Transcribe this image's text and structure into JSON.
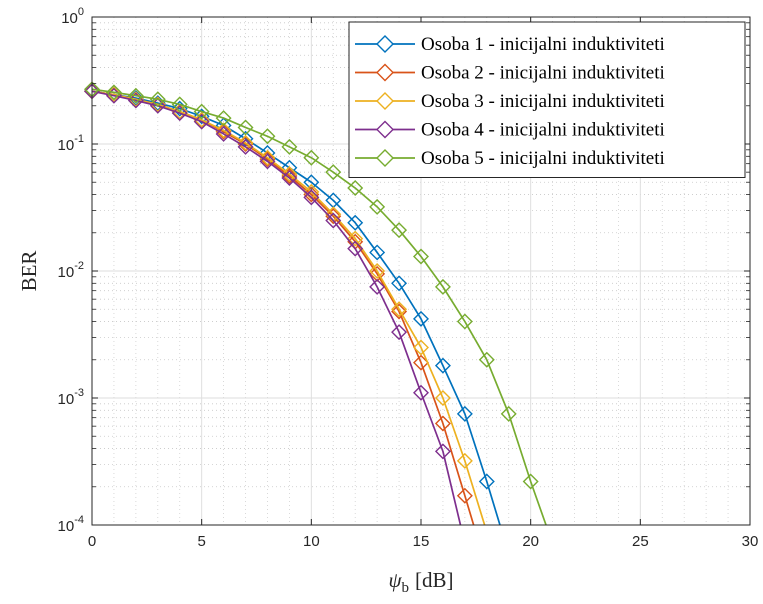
{
  "chart_data": {
    "type": "line",
    "title": "",
    "xlabel_symbol": "ψ",
    "xlabel_subscript": "b",
    "xlabel_unit": "[dB]",
    "ylabel": "BER",
    "xlim": [
      0,
      30
    ],
    "ylim": [
      0.0001,
      1
    ],
    "yscale": "log",
    "grid": true,
    "minor_grid": true,
    "legend_position": "top-right",
    "marker": "diamond",
    "x_ticks": [
      "0",
      "5",
      "10",
      "15",
      "20",
      "25",
      "30"
    ],
    "y_ticks": [
      {
        "base": "10",
        "exp": "0"
      },
      {
        "base": "10",
        "exp": "-1"
      },
      {
        "base": "10",
        "exp": "-2"
      },
      {
        "base": "10",
        "exp": "-3"
      },
      {
        "base": "10",
        "exp": "-4"
      }
    ],
    "series": [
      {
        "name": "Osoba 1 - inicijalni induktiviteti",
        "color": "#0072BD",
        "x": [
          0,
          1,
          2,
          3,
          4,
          5,
          6,
          7,
          8,
          9,
          10,
          11,
          12,
          13,
          14,
          15,
          16,
          17,
          18,
          18.6
        ],
        "y": [
          0.26,
          0.245,
          0.23,
          0.21,
          0.19,
          0.165,
          0.14,
          0.11,
          0.085,
          0.065,
          0.05,
          0.036,
          0.024,
          0.014,
          0.008,
          0.0042,
          0.0018,
          0.00075,
          0.00022,
          0.0001
        ]
      },
      {
        "name": "Osoba 2 - inicijalni induktiviteti",
        "color": "#D95319",
        "x": [
          0,
          1,
          2,
          3,
          4,
          5,
          6,
          7,
          8,
          9,
          10,
          11,
          12,
          13,
          14,
          15,
          16,
          17,
          17.4
        ],
        "y": [
          0.26,
          0.245,
          0.225,
          0.205,
          0.18,
          0.155,
          0.125,
          0.1,
          0.076,
          0.056,
          0.04,
          0.027,
          0.017,
          0.0095,
          0.0048,
          0.0019,
          0.00063,
          0.00017,
          0.0001
        ]
      },
      {
        "name": "Osoba 3 - inicijalni induktiviteti",
        "color": "#EDB120",
        "x": [
          0,
          1,
          2,
          3,
          4,
          5,
          6,
          7,
          8,
          9,
          10,
          11,
          12,
          13,
          14,
          15,
          16,
          17,
          17.9
        ],
        "y": [
          0.26,
          0.245,
          0.225,
          0.205,
          0.18,
          0.155,
          0.128,
          0.102,
          0.078,
          0.058,
          0.042,
          0.028,
          0.018,
          0.01,
          0.005,
          0.0025,
          0.001,
          0.00032,
          0.0001
        ]
      },
      {
        "name": "Osoba 4 - inicijalni induktiviteti",
        "color": "#7E2F8E",
        "x": [
          0,
          1,
          2,
          3,
          4,
          5,
          6,
          7,
          8,
          9,
          10,
          11,
          12,
          13,
          14,
          15,
          16,
          16.8
        ],
        "y": [
          0.26,
          0.24,
          0.22,
          0.2,
          0.175,
          0.15,
          0.12,
          0.095,
          0.073,
          0.054,
          0.038,
          0.025,
          0.015,
          0.0075,
          0.0033,
          0.0011,
          0.00038,
          0.0001
        ]
      },
      {
        "name": "Osoba 5 - inicijalni induktiviteti",
        "color": "#77AC30",
        "x": [
          0,
          1,
          2,
          3,
          4,
          5,
          6,
          7,
          8,
          9,
          10,
          11,
          12,
          13,
          14,
          15,
          16,
          17,
          18,
          19,
          20,
          20.7
        ],
        "y": [
          0.27,
          0.255,
          0.24,
          0.225,
          0.205,
          0.18,
          0.16,
          0.135,
          0.115,
          0.095,
          0.078,
          0.06,
          0.045,
          0.032,
          0.021,
          0.013,
          0.0075,
          0.004,
          0.002,
          0.00075,
          0.00022,
          0.0001
        ]
      }
    ]
  }
}
